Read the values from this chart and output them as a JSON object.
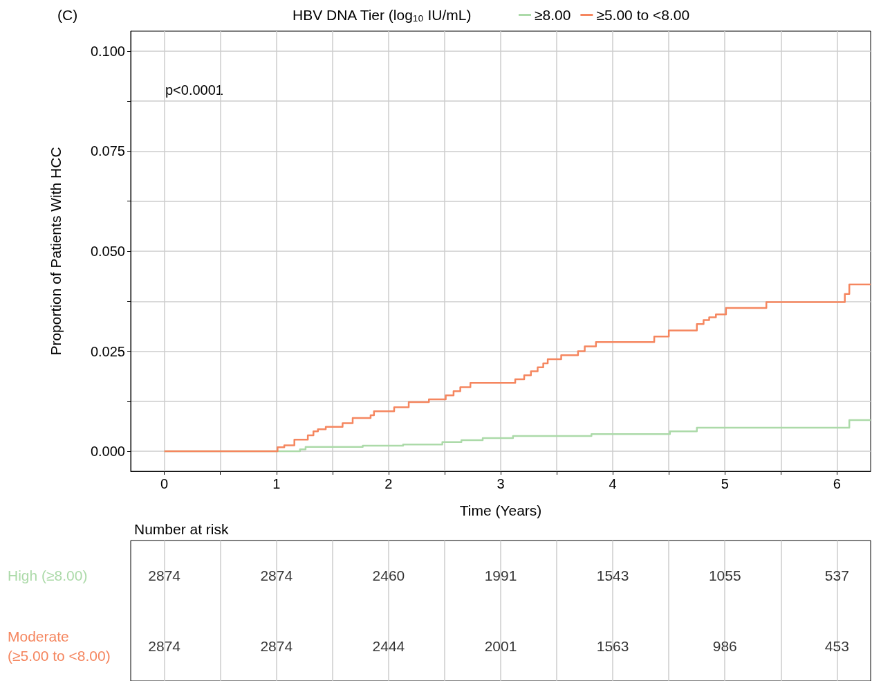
{
  "chart_data": [
    {
      "type": "step",
      "title": "(C)",
      "xlabel": "Time (Years)",
      "ylabel": "Proportion of Patients With HCC",
      "legend_title": "HBV DNA Tier (log₁₀ IU/mL)",
      "annotations": [
        "p<0.0001"
      ],
      "xlim": [
        -0.3,
        6.3
      ],
      "ylim": [
        -0.005,
        0.105
      ],
      "xticks": [
        0,
        {
          "value": 0.5,
          "label": null
        },
        1,
        {
          "value": 1.5,
          "label": null
        },
        2,
        {
          "value": 2.5,
          "label": null
        },
        3,
        {
          "value": 3.5,
          "label": null
        },
        4,
        {
          "value": 4.5,
          "label": null
        },
        5,
        {
          "value": 5.5,
          "label": null
        },
        6
      ],
      "yticks": [
        {
          "value": 0,
          "label": "0.000"
        },
        {
          "value": 0.0125,
          "label": null
        },
        {
          "value": 0.025,
          "label": "0.025"
        },
        {
          "value": 0.0375,
          "label": null
        },
        {
          "value": 0.05,
          "label": "0.050"
        },
        {
          "value": 0.0625,
          "label": null
        },
        {
          "value": 0.075,
          "label": "0.075"
        },
        {
          "value": 0.0875,
          "label": null
        },
        {
          "value": 0.1,
          "label": "0.100"
        }
      ],
      "grid": true,
      "legend": "top",
      "marker": "none",
      "line_style": "solid",
      "series": [
        {
          "name": "≥8.00",
          "color": "#acdaa9",
          "x": [
            0,
            1.21,
            1.26,
            1.77,
            2.13,
            2.48,
            2.65,
            2.84,
            3.11,
            3.81,
            4.51,
            4.75,
            6.11,
            6.3
          ],
          "values": [
            0,
            0.0005,
            0.0011,
            0.0014,
            0.0017,
            0.0023,
            0.0028,
            0.0033,
            0.0038,
            0.0043,
            0.005,
            0.0059,
            0.0078,
            0.0078
          ]
        },
        {
          "name": "≥5.00 to <8.00",
          "color": "#f5865f",
          "x": [
            0,
            1.0,
            1.01,
            1.07,
            1.16,
            1.28,
            1.33,
            1.37,
            1.44,
            1.59,
            1.68,
            1.84,
            1.87,
            2.05,
            2.18,
            2.36,
            2.51,
            2.58,
            2.64,
            2.73,
            3.13,
            3.21,
            3.27,
            3.33,
            3.38,
            3.42,
            3.54,
            3.69,
            3.75,
            3.85,
            4.37,
            4.5,
            4.75,
            4.81,
            4.86,
            4.92,
            5.01,
            5.37,
            6.07,
            6.11,
            6.3
          ],
          "values": [
            0,
            0,
            0.001,
            0.0015,
            0.0029,
            0.004,
            0.005,
            0.0055,
            0.0061,
            0.007,
            0.0083,
            0.009,
            0.01,
            0.011,
            0.0123,
            0.013,
            0.014,
            0.015,
            0.016,
            0.0171,
            0.018,
            0.019,
            0.02,
            0.021,
            0.022,
            0.023,
            0.024,
            0.025,
            0.0262,
            0.0273,
            0.0287,
            0.0302,
            0.0318,
            0.0328,
            0.0335,
            0.0342,
            0.0358,
            0.0373,
            0.0393,
            0.0417,
            0.0417
          ]
        }
      ]
    },
    {
      "type": "heatmap",
      "title": "Number at risk",
      "x": [
        0,
        1,
        2,
        3,
        4,
        5,
        6
      ],
      "xlim": [
        -0.3,
        6.3
      ],
      "xticks": [
        0,
        0.5,
        1,
        1.5,
        2,
        2.5,
        3,
        3.5,
        4,
        4.5,
        5,
        5.5,
        6
      ],
      "y_categories": [
        "High (≥8.00)",
        "Moderate (≥5.00 to <8.00)"
      ],
      "cells": [
        [
          2874,
          2874,
          2460,
          1991,
          1543,
          1055,
          537
        ],
        [
          2874,
          2874,
          2444,
          2001,
          1563,
          986,
          453
        ]
      ],
      "data_labels": true,
      "grid": "x",
      "tick_labels": "y"
    }
  ]
}
